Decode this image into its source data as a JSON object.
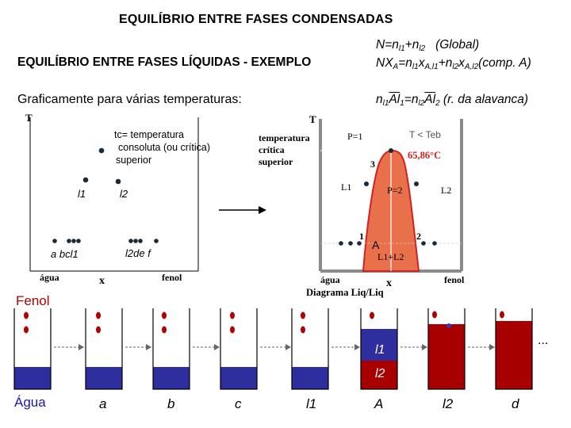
{
  "header": {
    "title": "EQUILÍBRIO ENTRE FASES CONDENSADAS",
    "subtitle": "EQUILÍBRIO ENTRE FASES LÍQUIDAS - EXEMPLO",
    "graf_text": "Graficamente para várias temperaturas:"
  },
  "equations": {
    "line1": [
      "N=n",
      "l1",
      "+n",
      "l2",
      "   (Global)"
    ],
    "line2": [
      "NX",
      "A",
      "=n",
      "l1",
      "x",
      "A,l1",
      "+n",
      "l2",
      "x",
      "A,l2",
      "(comp. A)"
    ],
    "line3": [
      "n",
      "l1",
      "Al",
      "1",
      "=n",
      "l2",
      "Al",
      "2",
      " (r. da alavanca)"
    ]
  },
  "left_diagram": {
    "y_axis": "T",
    "x_left": "água",
    "x_right": "fenol",
    "x_axis": "x",
    "tc_line1": "tc= temperatura",
    "tc_line2": "consoluta (ou crítica)",
    "tc_line3": "superior",
    "l1": "l1",
    "l2": "l2",
    "bottom_left": "a bcl1",
    "bottom_right": "l2de  f"
  },
  "mid_text": [
    "temperatura",
    "crítica",
    "superior"
  ],
  "phase_diagram": {
    "y_axis": "T",
    "x_left": "água",
    "x_right": "fenol",
    "x_axis": "x",
    "caption": "Diagrama Liq/Liq",
    "p1": "P=1",
    "t_label": "T < Teb",
    "temp": "65,86°C",
    "label_3": "3",
    "l1": "L1",
    "l2": "L2",
    "p2": "P=2",
    "label_1": "1",
    "label_a": "A",
    "label_2": "2",
    "region": "L1+L2",
    "colors": {
      "fill": "#e8704a",
      "outline": "#d42020",
      "axis": "#8a8a8a"
    }
  },
  "beakers": {
    "fenol_label": "Fenol",
    "agua_label": "Água",
    "labels": [
      "a",
      "b",
      "c",
      "l1",
      "A",
      "l2",
      "d"
    ],
    "l1_inner": "l1",
    "l2_inner": "l2",
    "ellipsis": "...",
    "colors": {
      "blue": "#2e2e9e",
      "red": "#a80000"
    }
  }
}
